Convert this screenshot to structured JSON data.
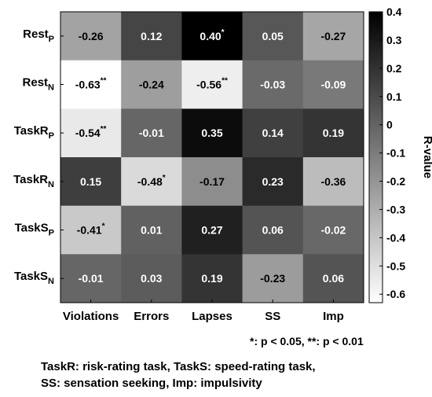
{
  "chart_data": {
    "type": "heatmap",
    "columns": [
      "Violations",
      "Errors",
      "Lapses",
      "SS",
      "Imp"
    ],
    "rows": [
      {
        "base": "Rest",
        "sub": "P"
      },
      {
        "base": "Rest",
        "sub": "N"
      },
      {
        "base": "TaskR",
        "sub": "P"
      },
      {
        "base": "TaskR",
        "sub": "N"
      },
      {
        "base": "TaskS",
        "sub": "P"
      },
      {
        "base": "TaskS",
        "sub": "N"
      }
    ],
    "values": [
      [
        -0.26,
        0.12,
        0.4,
        0.05,
        -0.27
      ],
      [
        -0.63,
        -0.24,
        -0.56,
        -0.03,
        -0.09
      ],
      [
        -0.54,
        -0.01,
        0.35,
        0.14,
        0.19
      ],
      [
        0.15,
        -0.48,
        -0.17,
        0.23,
        -0.36
      ],
      [
        -0.41,
        0.01,
        0.27,
        0.06,
        -0.02
      ],
      [
        -0.01,
        0.03,
        0.19,
        -0.23,
        0.06
      ]
    ],
    "cell_labels": [
      [
        "-0.26",
        "0.12",
        "0.40",
        "0.05",
        "-0.27"
      ],
      [
        "-0.63",
        "-0.24",
        "-0.56",
        "-0.03",
        "-0.09"
      ],
      [
        "-0.54",
        "-0.01",
        "0.35",
        "0.14",
        "0.19"
      ],
      [
        "0.15",
        "-0.48",
        "-0.17",
        "0.23",
        "-0.36"
      ],
      [
        "-0.41",
        "0.01",
        "0.27",
        "0.06",
        "-0.02"
      ],
      [
        "-0.01",
        "0.03",
        "0.19",
        "-0.23",
        "0.06"
      ]
    ],
    "significance": [
      [
        "",
        "",
        "*",
        "",
        ""
      ],
      [
        "**",
        "",
        "**",
        "",
        ""
      ],
      [
        "**",
        "",
        "",
        "",
        ""
      ],
      [
        "",
        "*",
        "",
        "",
        ""
      ],
      [
        "*",
        "",
        "",
        "",
        ""
      ],
      [
        "",
        "",
        "",
        "",
        ""
      ]
    ],
    "colorbar": {
      "label": "R-value",
      "range": [
        -0.63,
        0.4
      ],
      "ticks": [
        0.4,
        0.3,
        0.2,
        0.1,
        0,
        -0.1,
        -0.2,
        -0.3,
        -0.4,
        -0.5,
        -0.6
      ],
      "tick_labels": [
        "0.4",
        "0.3",
        "0.2",
        "0.1",
        "0",
        "-0.1",
        "-0.2",
        "-0.3",
        "-0.4",
        "-0.5",
        "-0.6"
      ],
      "colormap": "gray-reversed",
      "placement": "right"
    }
  },
  "significance_note": "*: p < 0.05, **: p < 0.01",
  "caption": {
    "line1": "TaskR: risk-rating task, TaskS: speed-rating task,",
    "line2": "SS: sensation seeking, Imp: impulsivity"
  }
}
